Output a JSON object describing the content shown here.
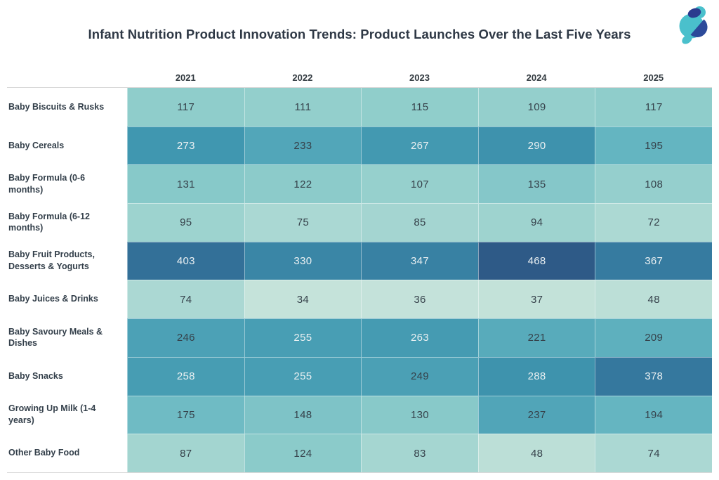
{
  "logo": {
    "teal": "#4AC0CC",
    "navy": "#2B3A8E",
    "navy2": "#2C4A9A"
  },
  "chart_data": {
    "type": "heatmap",
    "title": "Infant Nutrition Product Innovation Trends: Product Launches Over the Last Five Years",
    "columns": [
      "2021",
      "2022",
      "2023",
      "2024",
      "2025"
    ],
    "rows": [
      {
        "label": "Baby Biscuits & Rusks",
        "values": [
          117,
          111,
          115,
          109,
          117
        ]
      },
      {
        "label": "Baby Cereals",
        "values": [
          273,
          233,
          267,
          290,
          195
        ]
      },
      {
        "label": "Baby Formula (0-6 months)",
        "values": [
          131,
          122,
          107,
          135,
          108
        ]
      },
      {
        "label": "Baby Formula (6-12 months)",
        "values": [
          95,
          75,
          85,
          94,
          72
        ]
      },
      {
        "label": "Baby Fruit Products, Desserts & Yogurts",
        "values": [
          403,
          330,
          347,
          468,
          367
        ]
      },
      {
        "label": "Baby Juices & Drinks",
        "values": [
          74,
          34,
          36,
          37,
          48
        ]
      },
      {
        "label": "Baby Savoury Meals & Dishes",
        "values": [
          246,
          255,
          263,
          221,
          209
        ]
      },
      {
        "label": "Baby Snacks",
        "values": [
          258,
          255,
          249,
          288,
          378
        ]
      },
      {
        "label": "Growing Up Milk (1-4 years)",
        "values": [
          175,
          148,
          130,
          237,
          194
        ]
      },
      {
        "label": "Other Baby Food",
        "values": [
          87,
          124,
          83,
          48,
          74
        ]
      }
    ],
    "value_domain": [
      34,
      468
    ],
    "color_scale": {
      "anchors": [
        [
          34,
          "#C5E3DA"
        ],
        [
          117,
          "#8FCDCB"
        ],
        [
          195,
          "#64B5C1"
        ],
        [
          273,
          "#4097B0"
        ],
        [
          378,
          "#35789E"
        ],
        [
          468,
          "#2E5A87"
        ]
      ]
    },
    "text_colors": {
      "dark": "#36424B",
      "light": "#EAF0F2",
      "light_threshold": 250
    },
    "layout": {
      "legend": "none",
      "grid": "thin-white-separators",
      "header_rule_color": "#d9d9d9"
    }
  }
}
